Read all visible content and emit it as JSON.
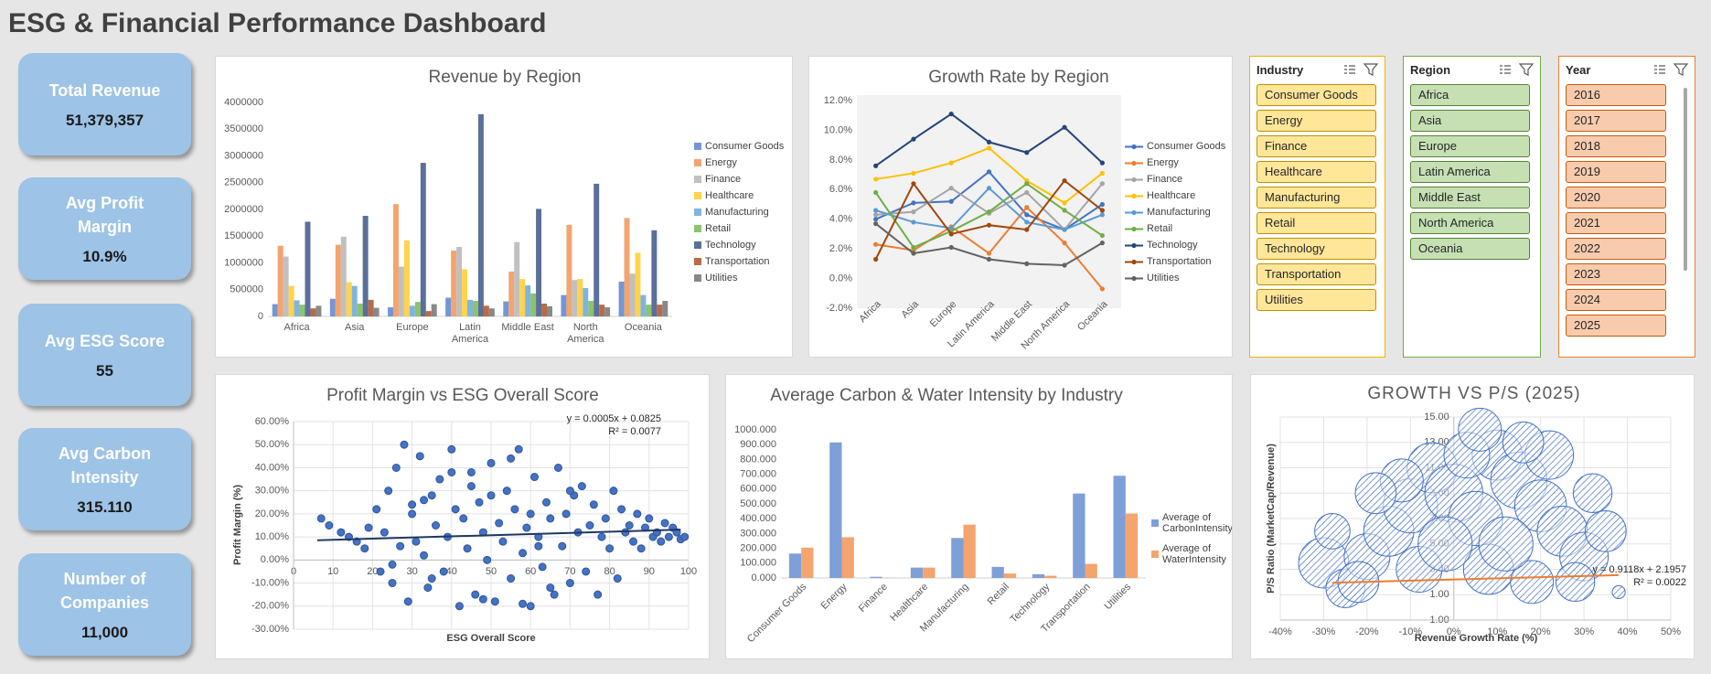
{
  "title": "ESG & Financial Performance Dashboard",
  "kpis": [
    {
      "label": "Total Revenue",
      "value": "51,379,357"
    },
    {
      "label": "Avg Profit Margin",
      "value": "10.9%"
    },
    {
      "label": "Avg ESG Score",
      "value": "55"
    },
    {
      "label": "Avg Carbon Intensity",
      "value": "315.110"
    },
    {
      "label": "Number of Companies",
      "value": "11,000"
    }
  ],
  "slicers": [
    {
      "title": "Industry",
      "items": [
        "Consumer Goods",
        "Energy",
        "Finance",
        "Healthcare",
        "Manufacturing",
        "Retail",
        "Technology",
        "Transportation",
        "Utilities"
      ]
    },
    {
      "title": "Region",
      "items": [
        "Africa",
        "Asia",
        "Europe",
        "Latin America",
        "Middle East",
        "North America",
        "Oceania"
      ]
    },
    {
      "title": "Year",
      "items": [
        "2016",
        "2017",
        "2018",
        "2019",
        "2020",
        "2021",
        "2022",
        "2023",
        "2024",
        "2025"
      ]
    }
  ],
  "chart_data": [
    {
      "type": "bar",
      "title": "Revenue by Region",
      "categories": [
        "Africa",
        "Asia",
        "Europe",
        "Latin America",
        "Middle East",
        "North America",
        "Oceania"
      ],
      "series": [
        {
          "name": "Consumer Goods",
          "color": "#7396d6",
          "values": [
            230000,
            330000,
            170000,
            350000,
            280000,
            400000,
            650000
          ]
        },
        {
          "name": "Energy",
          "color": "#f4a46e",
          "values": [
            1320000,
            1340000,
            2100000,
            1230000,
            840000,
            1710000,
            1840000
          ]
        },
        {
          "name": "Finance",
          "color": "#c0c0c0",
          "values": [
            1120000,
            1490000,
            930000,
            1300000,
            1390000,
            680000,
            800000
          ]
        },
        {
          "name": "Healthcare",
          "color": "#ffd34d",
          "values": [
            570000,
            640000,
            1420000,
            880000,
            700000,
            700000,
            1190000
          ]
        },
        {
          "name": "Manufacturing",
          "color": "#7fb4e0",
          "values": [
            300000,
            570000,
            200000,
            310000,
            580000,
            530000,
            400000
          ]
        },
        {
          "name": "Retail",
          "color": "#8cc36b",
          "values": [
            220000,
            240000,
            270000,
            290000,
            430000,
            290000,
            220000
          ]
        },
        {
          "name": "Technology",
          "color": "#5a6f99",
          "values": [
            1770000,
            1880000,
            2870000,
            3780000,
            2010000,
            2480000,
            1610000
          ]
        },
        {
          "name": "Transportation",
          "color": "#b86b4a",
          "values": [
            150000,
            310000,
            100000,
            200000,
            240000,
            220000,
            220000
          ]
        },
        {
          "name": "Utilities",
          "color": "#888888",
          "values": [
            200000,
            160000,
            230000,
            150000,
            190000,
            170000,
            290000
          ]
        }
      ],
      "ylim": [
        0,
        4000000
      ],
      "yticks": [
        0,
        500000,
        1000000,
        1500000,
        2000000,
        2500000,
        3000000,
        3500000,
        4000000
      ],
      "grid": false,
      "legend": "right"
    },
    {
      "type": "line",
      "title": "Growth Rate by Region",
      "categories": [
        "Africa",
        "Asia",
        "Europe",
        "Latin America",
        "Middle East",
        "North America",
        "Oceania"
      ],
      "series": [
        {
          "name": "Consumer Goods",
          "color": "#4472c4",
          "values": [
            4.0,
            5.1,
            5.2,
            7.2,
            4.3,
            3.3,
            5.0
          ]
        },
        {
          "name": "Energy",
          "color": "#ed7d31",
          "values": [
            2.3,
            1.9,
            3.5,
            1.7,
            4.8,
            2.4,
            -0.7
          ]
        },
        {
          "name": "Finance",
          "color": "#a5a5a5",
          "values": [
            4.3,
            4.5,
            6.1,
            4.4,
            5.8,
            3.3,
            6.4
          ]
        },
        {
          "name": "Healthcare",
          "color": "#ffc000",
          "values": [
            6.7,
            7.1,
            7.8,
            8.8,
            6.6,
            5.1,
            7.1
          ]
        },
        {
          "name": "Manufacturing",
          "color": "#5b9bd5",
          "values": [
            4.6,
            3.8,
            3.4,
            6.1,
            3.8,
            3.3,
            4.3
          ]
        },
        {
          "name": "Retail",
          "color": "#70ad47",
          "values": [
            5.8,
            2.1,
            3.2,
            4.5,
            6.4,
            4.6,
            2.9
          ]
        },
        {
          "name": "Technology",
          "color": "#264478",
          "values": [
            7.6,
            9.4,
            11.1,
            9.2,
            8.5,
            10.2,
            7.8
          ]
        },
        {
          "name": "Transportation",
          "color": "#9e480e",
          "values": [
            1.3,
            6.4,
            3.0,
            3.6,
            3.3,
            6.6,
            4.6
          ]
        },
        {
          "name": "Utilities",
          "color": "#636363",
          "values": [
            3.7,
            1.7,
            2.1,
            1.3,
            1.0,
            0.9,
            2.4
          ]
        }
      ],
      "ylim": [
        -2,
        12
      ],
      "yticks": [
        {
          "value": -2,
          "label": "-2.0%"
        },
        {
          "value": 0,
          "label": "0.0%"
        },
        {
          "value": 2,
          "label": "2.0%"
        },
        {
          "value": 4,
          "label": "4.0%"
        },
        {
          "value": 6,
          "label": "6.0%"
        },
        {
          "value": 8,
          "label": "8.0%"
        },
        {
          "value": 10,
          "label": "10.0%"
        },
        {
          "value": 12,
          "label": "12.0%"
        }
      ],
      "grid": false,
      "legend": "right",
      "plot_background": "#f2f2f2"
    },
    {
      "type": "scatter",
      "title": "Profit Margin vs ESG Overall Score",
      "x_label": "ESG Overall Score",
      "y_label": "Profit Margin (%)",
      "color": "#4472c4",
      "edge_color": "#2f5597",
      "x": [
        7,
        9,
        12,
        14,
        16,
        18,
        19,
        21,
        22,
        23,
        24,
        25,
        26,
        27,
        28,
        29,
        30,
        31,
        32,
        33,
        34,
        35,
        36,
        37,
        38,
        39,
        40,
        41,
        42,
        43,
        44,
        45,
        46,
        47,
        48,
        49,
        50,
        51,
        52,
        53,
        54,
        55,
        56,
        57,
        58,
        59,
        60,
        61,
        62,
        63,
        64,
        65,
        66,
        67,
        68,
        69,
        70,
        71,
        72,
        73,
        74,
        75,
        76,
        77,
        78,
        79,
        80,
        81,
        82,
        83,
        84,
        85,
        86,
        87,
        88,
        89,
        90,
        91,
        92,
        93,
        94,
        95,
        96,
        97,
        98,
        99,
        30,
        45,
        60,
        35,
        50,
        65,
        40,
        55,
        70,
        25,
        48,
        62,
        33,
        58
      ],
      "values": [
        18,
        15,
        12,
        10,
        8,
        5,
        14,
        22,
        -5,
        12,
        30,
        -10,
        40,
        6,
        50,
        -18,
        20,
        8,
        45,
        2,
        -12,
        28,
        15,
        35,
        -5,
        10,
        48,
        22,
        -20,
        18,
        5,
        38,
        -15,
        25,
        12,
        0,
        42,
        -18,
        16,
        8,
        30,
        -8,
        22,
        48,
        3,
        14,
        -20,
        36,
        10,
        -3,
        25,
        18,
        -15,
        40,
        6,
        20,
        -10,
        28,
        12,
        32,
        -5,
        15,
        24,
        -15,
        10,
        18,
        5,
        30,
        -8,
        22,
        12,
        15,
        8,
        20,
        5,
        14,
        18,
        10,
        12,
        8,
        16,
        10,
        14,
        12,
        9,
        10,
        24,
        32,
        20,
        -8,
        28,
        -12,
        38,
        44,
        30,
        -2,
        -17,
        6,
        26,
        -19
      ],
      "trendline": {
        "x": [
          6,
          98
        ],
        "values": [
          8.55,
          13.15
        ],
        "color": "#1f3864",
        "equation": "y = 0.0005x + 0.0825",
        "r_squared": "R² = 0.0077"
      },
      "xlim": [
        0,
        100
      ],
      "xticks": [
        0,
        10,
        20,
        30,
        40,
        50,
        60,
        70,
        80,
        90,
        100
      ],
      "ylim": [
        -30,
        60
      ],
      "yticks": [
        {
          "value": -30,
          "label": "-30.00%"
        },
        {
          "value": -20,
          "label": "-20.00%"
        },
        {
          "value": -10,
          "label": "-10.00%"
        },
        {
          "value": 0,
          "label": "0.00%"
        },
        {
          "value": 10,
          "label": "10.00%"
        },
        {
          "value": 20,
          "label": "20.00%"
        },
        {
          "value": 30,
          "label": "30.00%"
        },
        {
          "value": 40,
          "label": "40.00%"
        },
        {
          "value": 50,
          "label": "50.00%"
        },
        {
          "value": 60,
          "label": "60.00%"
        }
      ],
      "grid": true
    },
    {
      "type": "bar",
      "title": "Average Carbon & Water Intensity by Industry",
      "categories": [
        "Consumer Goods",
        "Energy",
        "Finance",
        "Healthcare",
        "Manufacturing",
        "Retail",
        "Technology",
        "Transportation",
        "Utilities"
      ],
      "series": [
        {
          "name": "Average of CarbonIntensity",
          "color": "#7f9fd9",
          "values": [
            165,
            915,
            8,
            70,
            270,
            75,
            25,
            570,
            690
          ]
        },
        {
          "name": "Average of WaterIntensity",
          "color": "#f4a46e",
          "values": [
            205,
            275,
            2,
            70,
            360,
            30,
            15,
            95,
            435
          ]
        }
      ],
      "ylim": [
        0,
        1000
      ],
      "yticks": [
        {
          "value": 0,
          "label": "0.000"
        },
        {
          "value": 100,
          "label": "100.000"
        },
        {
          "value": 200,
          "label": "200.000"
        },
        {
          "value": 300,
          "label": "300.000"
        },
        {
          "value": 400,
          "label": "400.000"
        },
        {
          "value": 500,
          "label": "500.000"
        },
        {
          "value": 600,
          "label": "600.000"
        },
        {
          "value": 700,
          "label": "700.000"
        },
        {
          "value": 800,
          "label": "800.000"
        },
        {
          "value": 900,
          "label": "900.000"
        },
        {
          "value": 1000,
          "label": "1000.000"
        }
      ],
      "grid": false,
      "legend": "right"
    },
    {
      "type": "bubble",
      "title": "GROWTH VS P/S (2025)",
      "x_label": "Revenue Growth Rate (%)",
      "y_label": "P/S Ratio (MarketCap/Revenue)",
      "color": "#4472c4",
      "x": [
        -30,
        -25,
        -20,
        -15,
        -10,
        -5,
        0,
        5,
        10,
        15,
        20,
        25,
        30,
        -22,
        -8,
        8,
        18,
        28,
        3,
        -12,
        22,
        35,
        -2,
        12,
        38,
        -28,
        32,
        -18,
        6,
        16
      ],
      "values": [
        3.5,
        1.5,
        4,
        6,
        8,
        11,
        9,
        7,
        12,
        10,
        8,
        6,
        4,
        2,
        3,
        3,
        2,
        2,
        12,
        10,
        12,
        6,
        5,
        5,
        1.2,
        6,
        9,
        9,
        14,
        13
      ],
      "sizes": [
        30,
        18,
        25,
        30,
        35,
        30,
        40,
        35,
        30,
        38,
        32,
        30,
        28,
        20,
        25,
        30,
        22,
        18,
        25,
        22,
        28,
        20,
        35,
        35,
        2,
        15,
        18,
        20,
        22,
        20
      ],
      "trendline": {
        "x": [
          -28,
          38
        ],
        "values": [
          1.94,
          2.54
        ],
        "color": "#ed7d31",
        "equation": "y = 0.9118x + 2.1957",
        "r_squared": "R² = 0.0022"
      },
      "xlim": [
        -40,
        50
      ],
      "xticks": [
        {
          "value": -40,
          "label": "-40%"
        },
        {
          "value": -30,
          "label": "-30%"
        },
        {
          "value": -20,
          "label": "-20%"
        },
        {
          "value": -10,
          "label": "-10%"
        },
        {
          "value": 0,
          "label": "0%"
        },
        {
          "value": 10,
          "label": "10%"
        },
        {
          "value": 20,
          "label": "20%"
        },
        {
          "value": 30,
          "label": "30%"
        },
        {
          "value": 40,
          "label": "40%"
        },
        {
          "value": 50,
          "label": "50%"
        }
      ],
      "ylim": [
        -1,
        15
      ],
      "yticks": [
        {
          "value": -1,
          "label": "-1.00"
        },
        {
          "value": 1,
          "label": "1.00"
        },
        {
          "value": 3,
          "label": "3.00"
        },
        {
          "value": 5,
          "label": "5.00"
        },
        {
          "value": 7,
          "label": "7.00"
        },
        {
          "value": 9,
          "label": "9.00"
        },
        {
          "value": 11,
          "label": "11.00"
        },
        {
          "value": 13,
          "label": "13.00"
        },
        {
          "value": 15,
          "label": "15.00"
        }
      ],
      "grid": true
    }
  ]
}
